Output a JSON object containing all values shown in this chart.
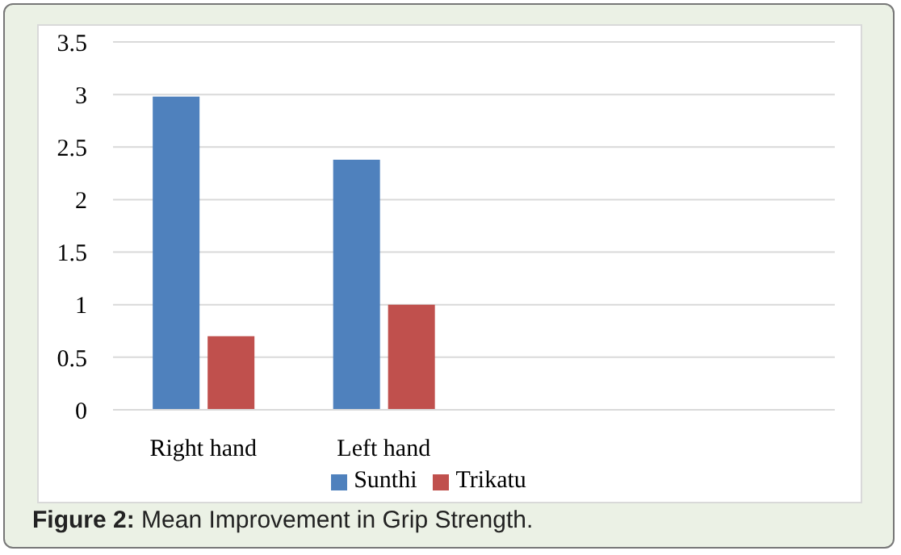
{
  "chart_data": {
    "type": "bar",
    "categories": [
      "Right hand",
      "Left hand",
      null,
      null
    ],
    "series": [
      {
        "name": "Sunthi",
        "color": "#4f81bd",
        "values": [
          2.98,
          2.38,
          null,
          null
        ]
      },
      {
        "name": "Trikatu",
        "color": "#c0504d",
        "values": [
          0.7,
          1.0,
          null,
          null
        ]
      }
    ],
    "ylim": [
      0,
      3.5
    ],
    "yticks": [
      0,
      0.5,
      1,
      1.5,
      2,
      2.5,
      3,
      3.5
    ],
    "grid": "y",
    "legend": "bottom",
    "annotations": [
      "Figure 2: Mean Improvement in Grip Strength."
    ]
  }
}
